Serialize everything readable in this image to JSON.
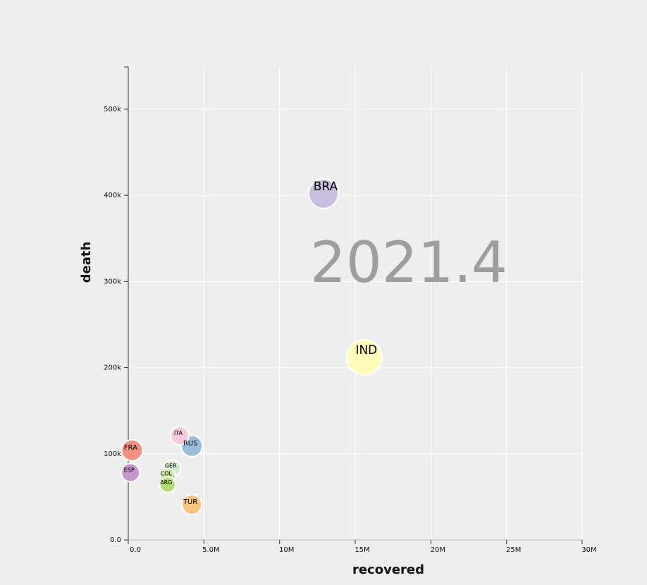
{
  "chart_data": {
    "type": "scatter",
    "title": "",
    "year_label": "2021.4",
    "xlabel": "recovered",
    "ylabel": "death",
    "xlim": [
      0,
      30000000
    ],
    "ylim": [
      0,
      550000
    ],
    "x_ticks": [
      {
        "value": 0,
        "label": "0.0"
      },
      {
        "value": 5000000,
        "label": "5.0M"
      },
      {
        "value": 10000000,
        "label": "10M"
      },
      {
        "value": 15000000,
        "label": "15M"
      },
      {
        "value": 20000000,
        "label": "20M"
      },
      {
        "value": 25000000,
        "label": "25M"
      },
      {
        "value": 30000000,
        "label": "30M"
      }
    ],
    "y_ticks": [
      {
        "value": 0,
        "label": "0.0"
      },
      {
        "value": 100000,
        "label": "100k"
      },
      {
        "value": 200000,
        "label": "200k"
      },
      {
        "value": 300000,
        "label": "300k"
      },
      {
        "value": 400000,
        "label": "400k"
      },
      {
        "value": 500000,
        "label": "500k"
      }
    ],
    "grid": true,
    "points": [
      {
        "label": "BRA",
        "x": 12900000,
        "y": 402000,
        "size": 21,
        "color": "#c9c0de"
      },
      {
        "label": "IND",
        "x": 15600000,
        "y": 212000,
        "size": 25,
        "color": "#fdfbb8"
      },
      {
        "label": "ITA",
        "x": 3400000,
        "y": 121000,
        "size": 13,
        "color": "#f7c9dc"
      },
      {
        "label": "RUS",
        "x": 4200000,
        "y": 109000,
        "size": 15,
        "color": "#98bddd"
      },
      {
        "label": "FRA",
        "x": 250000,
        "y": 104000,
        "size": 15,
        "color": "#f88f83"
      },
      {
        "label": "ESP",
        "x": 150000,
        "y": 78000,
        "size": 13,
        "color": "#c598c9"
      },
      {
        "label": "GER",
        "x": 2900000,
        "y": 83000,
        "size": 12,
        "color": "#d3eccd"
      },
      {
        "label": "COL",
        "x": 2600000,
        "y": 74000,
        "size": 11,
        "color": "#cfe6a0"
      },
      {
        "label": "ARG",
        "x": 2600000,
        "y": 64000,
        "size": 11,
        "color": "#b4dc76"
      },
      {
        "label": "TUR",
        "x": 4200000,
        "y": 41000,
        "size": 14,
        "color": "#fbc47d"
      }
    ]
  }
}
